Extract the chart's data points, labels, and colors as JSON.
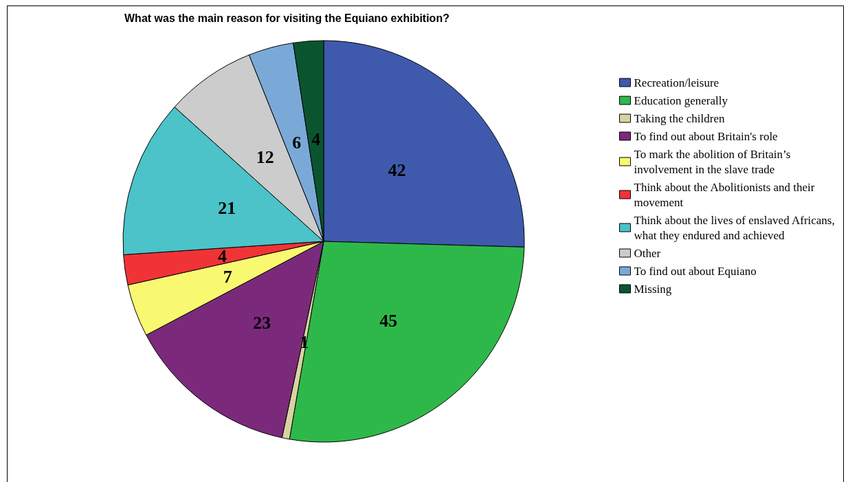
{
  "chart_data": {
    "type": "pie",
    "title": "What was the main reason for visiting the Equiano exhibition?",
    "categories": [
      "Recreation/leisure",
      "Education generally",
      "Taking the children",
      "To find out about Britain's role",
      "To mark the abolition of Britain’s involvement in the slave trade",
      "Think about the Abolitionists and their movement",
      "Think about the lives of enslaved Africans, what they endured and achieved",
      "Other",
      "To find out about Equiano",
      "Missing"
    ],
    "values": [
      42,
      45,
      1,
      23,
      7,
      4,
      21,
      12,
      6,
      4
    ],
    "colors": [
      "#3f5aad",
      "#2eb84a",
      "#d8d3a0",
      "#7b2a7b",
      "#f9f871",
      "#f03337",
      "#4bc3c8",
      "#cccccc",
      "#7aa9d8",
      "#0a5530"
    ],
    "data_labels": true,
    "legend": "right"
  }
}
